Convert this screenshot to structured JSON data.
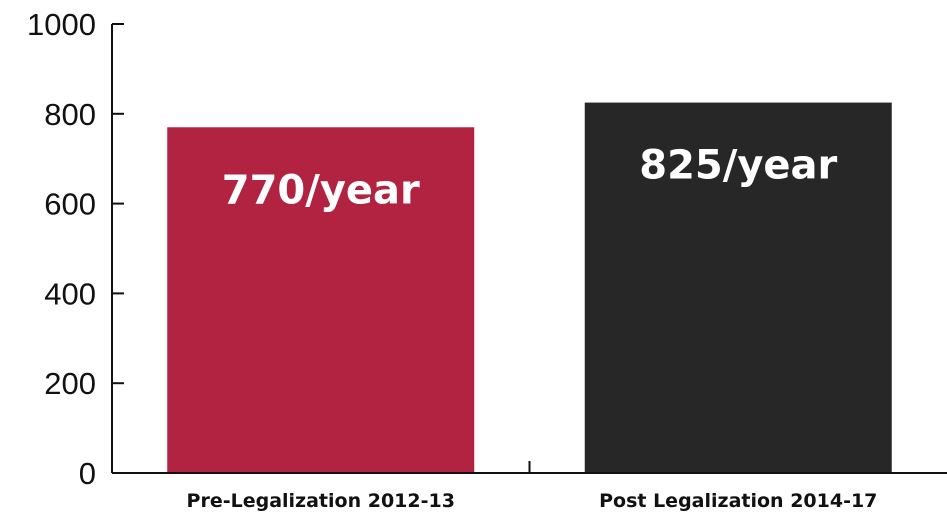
{
  "chart_data": {
    "type": "bar",
    "title": "",
    "xlabel": "",
    "ylabel": "",
    "categories": [
      "Pre-Legalization 2012-13",
      "Post Legalization 2014-17"
    ],
    "values": [
      770,
      825
    ],
    "data_labels": [
      "770/year",
      "825/year"
    ],
    "colors": [
      "#b22241",
      "#272727"
    ],
    "ylim": [
      0,
      1000
    ],
    "yticks": [
      "0",
      "200",
      "400",
      "600",
      "800",
      "1000"
    ],
    "grid": false,
    "legend": "none"
  }
}
